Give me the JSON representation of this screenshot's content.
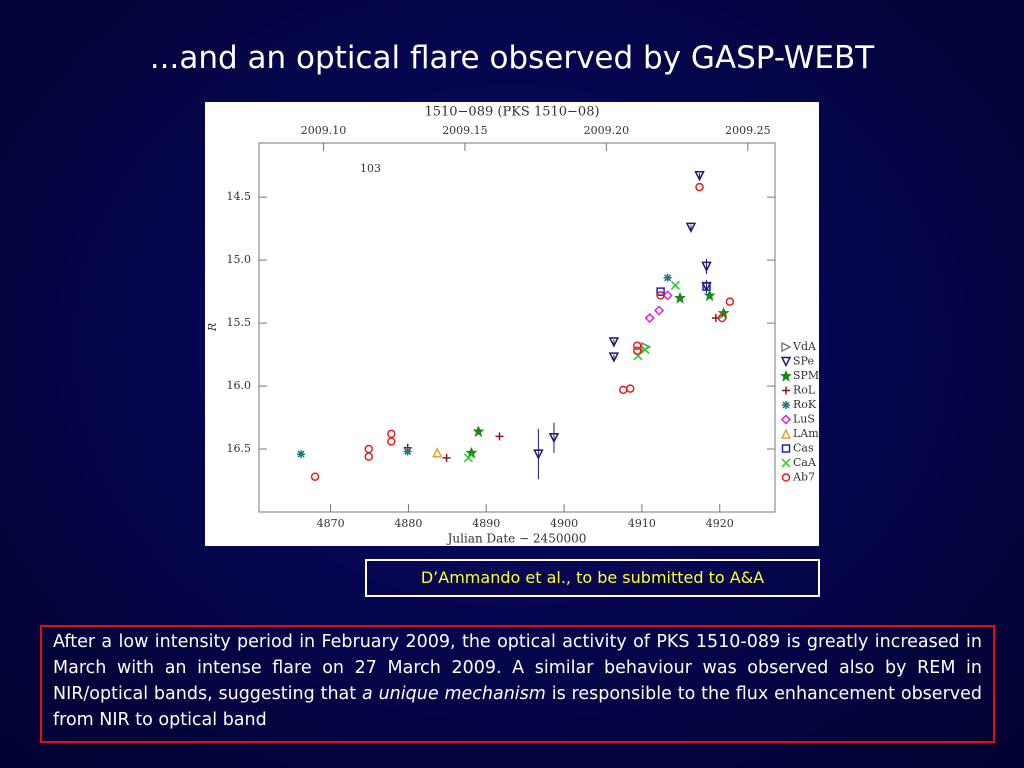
{
  "slide_title": "...and an optical flare observed by GASP-WEBT",
  "citation": "D’Ammando et al., to be submitted to A&A",
  "body": [
    "After a low intensity period in February 2009, the optical activity of PKS 1510-089 is greatly increased in March with an intense flare on 27 March 2009. A  similar behaviour was observed also by REM in NIR/optical bands, suggesting that ",
    "a unique mechanism",
    " is responsible to the flux enhancement observed from NIR to optical band"
  ],
  "chart_data": {
    "type": "scatter",
    "title": "1510−089 (PKS 1510−08)",
    "annotation": "103",
    "x_label": "Julian Date − 2450000",
    "y_label": "R",
    "xlim": [
      4860.8,
      4927.1
    ],
    "xticks": [
      4870,
      4880,
      4890,
      4900,
      4910,
      4920
    ],
    "x2lim": [
      2009.0772,
      2009.2596
    ],
    "x2ticks": [
      {
        "value": 2009.1,
        "label": "2009.10"
      },
      {
        "value": 2009.15,
        "label": "2009.15"
      },
      {
        "value": 2009.2,
        "label": "2009.20"
      },
      {
        "value": 2009.25,
        "label": "2009.25"
      }
    ],
    "ylim": [
      17.0,
      14.07
    ],
    "yticks": [
      14.5,
      {
        "value": 15,
        "label": "15.0"
      },
      15.5,
      {
        "value": 16,
        "label": "16.0"
      },
      16.5
    ],
    "series": [
      {
        "name": "VdA",
        "color": "#808080",
        "marker": "triangle-right",
        "x": [
          4910.5
        ],
        "values": [
          15.69
        ]
      },
      {
        "name": "SPe",
        "color": "#1a1a6e",
        "marker": "triangle-down",
        "x": [
          4896.7,
          4898.7,
          4906.4,
          4906.4,
          4916.3,
          4917.4,
          4918.3,
          4918.3
        ],
        "values": [
          16.54,
          16.41,
          15.65,
          15.77,
          14.74,
          14.33,
          15.05,
          15.21
        ],
        "errors": [
          0.2,
          0.12,
          0.02,
          0.02,
          0.02,
          0.02,
          0.06,
          0.05
        ]
      },
      {
        "name": "SPM",
        "color": "#1a8a1a",
        "marker": "star",
        "x": [
          4888.1,
          4889.0,
          4914.9,
          4918.7,
          4920.5
        ],
        "values": [
          16.53,
          16.36,
          15.3,
          15.28,
          15.42
        ]
      },
      {
        "name": "RoL",
        "color": "#8b1a1a",
        "marker": "plus",
        "x": [
          4879.9,
          4884.9,
          4891.7,
          4919.5
        ],
        "values": [
          16.49,
          16.57,
          16.4,
          15.46
        ]
      },
      {
        "name": "RoK",
        "color": "#1a7a7a",
        "marker": "asterisk",
        "x": [
          4866.2,
          4879.9,
          4913.3
        ],
        "values": [
          16.54,
          16.52,
          15.14
        ]
      },
      {
        "name": "LuS",
        "color": "#e020e0",
        "marker": "diamond",
        "x": [
          4911.0,
          4912.2,
          4913.3
        ],
        "values": [
          15.46,
          15.4,
          15.28
        ]
      },
      {
        "name": "LAm",
        "color": "#f0a030",
        "marker": "triangle-up",
        "x": [
          4883.7
        ],
        "values": [
          16.53
        ]
      },
      {
        "name": "Cas",
        "color": "#2020c0",
        "marker": "square",
        "x": [
          4912.4,
          4918.3
        ],
        "values": [
          15.25,
          15.21
        ]
      },
      {
        "name": "CaA",
        "color": "#20d020",
        "marker": "cross",
        "x": [
          4887.7,
          4909.5,
          4910.4,
          4914.3
        ],
        "values": [
          16.57,
          15.76,
          15.71,
          15.2
        ]
      },
      {
        "name": "Ab7",
        "color": "#e02020",
        "marker": "circle",
        "x": [
          4868.0,
          4874.9,
          4874.9,
          4877.8,
          4877.8,
          4907.6,
          4908.5,
          4909.4,
          4909.4,
          4912.4,
          4917.4,
          4920.3,
          4921.3
        ],
        "values": [
          16.72,
          16.5,
          16.56,
          16.38,
          16.44,
          16.03,
          16.02,
          15.68,
          15.72,
          15.28,
          14.42,
          15.46,
          15.33
        ]
      }
    ]
  }
}
